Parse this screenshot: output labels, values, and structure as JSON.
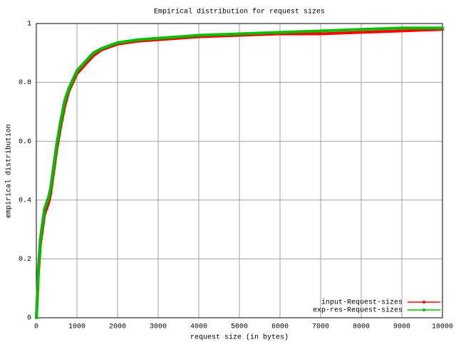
{
  "chart_data": {
    "type": "line",
    "title": "Empirical distribution for request sizes",
    "x_label": "request size (in bytes)",
    "y_label": "empirical distribution",
    "x": [
      0,
      20,
      50,
      100,
      150,
      200,
      250,
      300,
      350,
      400,
      500,
      600,
      700,
      800,
      900,
      1000,
      1200,
      1400,
      1600,
      1800,
      2000,
      2500,
      3000,
      4000,
      5000,
      6000,
      7000,
      8000,
      9000,
      10000
    ],
    "series": [
      {
        "name": "input-Request-sizes",
        "color": "#ff0000",
        "values": [
          0,
          0.05,
          0.15,
          0.25,
          0.3,
          0.35,
          0.37,
          0.39,
          0.42,
          0.47,
          0.57,
          0.65,
          0.72,
          0.77,
          0.8,
          0.83,
          0.86,
          0.89,
          0.91,
          0.92,
          0.93,
          0.94,
          0.945,
          0.955,
          0.96,
          0.965,
          0.965,
          0.97,
          0.975,
          0.98
        ]
      },
      {
        "name": "exp-res-Request-sizes",
        "color": "#00c000",
        "values": [
          0,
          0.06,
          0.17,
          0.27,
          0.32,
          0.37,
          0.39,
          0.41,
          0.44,
          0.49,
          0.59,
          0.67,
          0.74,
          0.78,
          0.81,
          0.84,
          0.87,
          0.9,
          0.915,
          0.925,
          0.935,
          0.945,
          0.95,
          0.96,
          0.965,
          0.97,
          0.975,
          0.98,
          0.985,
          0.985
        ]
      }
    ],
    "xlim": [
      0,
      10000
    ],
    "xticks": [
      0,
      1000,
      2000,
      3000,
      4000,
      5000,
      6000,
      7000,
      8000,
      9000,
      10000
    ],
    "ylim": [
      0,
      1
    ],
    "yticks": [
      0,
      0.2,
      0.4,
      0.6,
      0.8,
      1
    ],
    "grid": true,
    "legend": "bottom right"
  }
}
